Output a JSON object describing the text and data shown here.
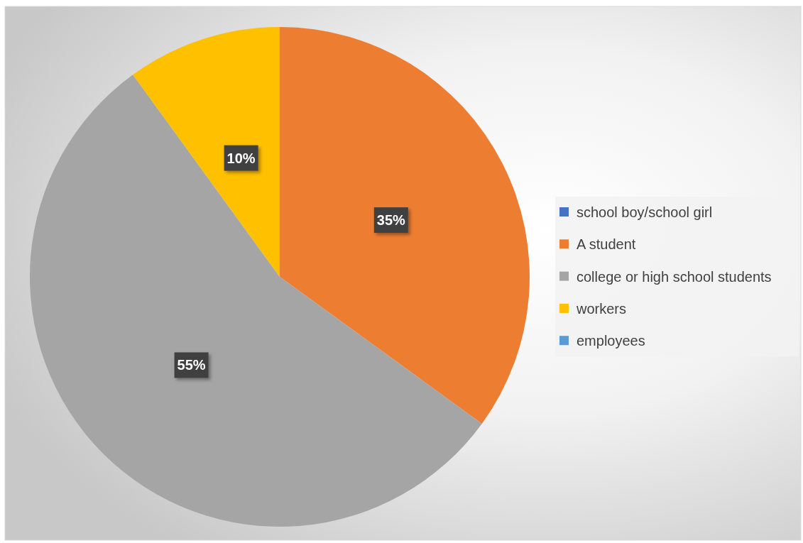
{
  "chart_data": {
    "type": "pie",
    "categories": [
      "school boy/school girl",
      "A student",
      "college or high school students",
      "workers",
      "employees"
    ],
    "values": [
      0,
      35,
      55,
      10,
      0
    ],
    "colors": [
      "#4472c4",
      "#ed7d31",
      "#a5a5a5",
      "#ffc000",
      "#5b9bd5"
    ],
    "value_labels": [
      null,
      "35%",
      "55%",
      "10%",
      null
    ],
    "legend": "right"
  }
}
